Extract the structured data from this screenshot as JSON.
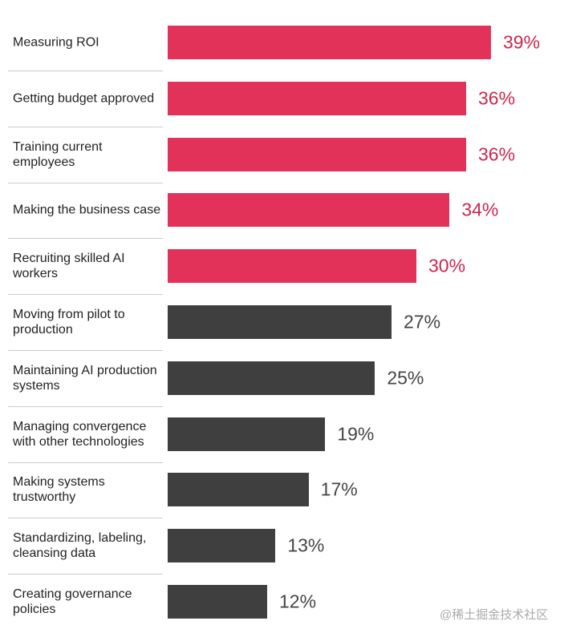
{
  "chart_data": {
    "type": "bar",
    "orientation": "horizontal",
    "categories": [
      "Measuring ROI",
      "Getting budget approved",
      "Training current employees",
      "Making the business case",
      "Recruiting skilled AI workers",
      "Moving from pilot to production",
      "Maintaining AI production systems",
      "Managing convergence with other technologies",
      "Making systems trustworthy",
      "Standardizing, labeling, cleansing data",
      "Creating governance policies"
    ],
    "values": [
      39,
      36,
      36,
      34,
      30,
      27,
      25,
      19,
      17,
      13,
      12
    ],
    "value_labels": [
      "39%",
      "36%",
      "36%",
      "34%",
      "30%",
      "27%",
      "25%",
      "19%",
      "17%",
      "13%",
      "12%"
    ],
    "colors": [
      "#e3325a",
      "#e3325a",
      "#e3325a",
      "#e3325a",
      "#e3325a",
      "#3f3f3f",
      "#3f3f3f",
      "#3f3f3f",
      "#3f3f3f",
      "#3f3f3f",
      "#3f3f3f"
    ],
    "watermark": "@稀土掘金技术社区"
  }
}
